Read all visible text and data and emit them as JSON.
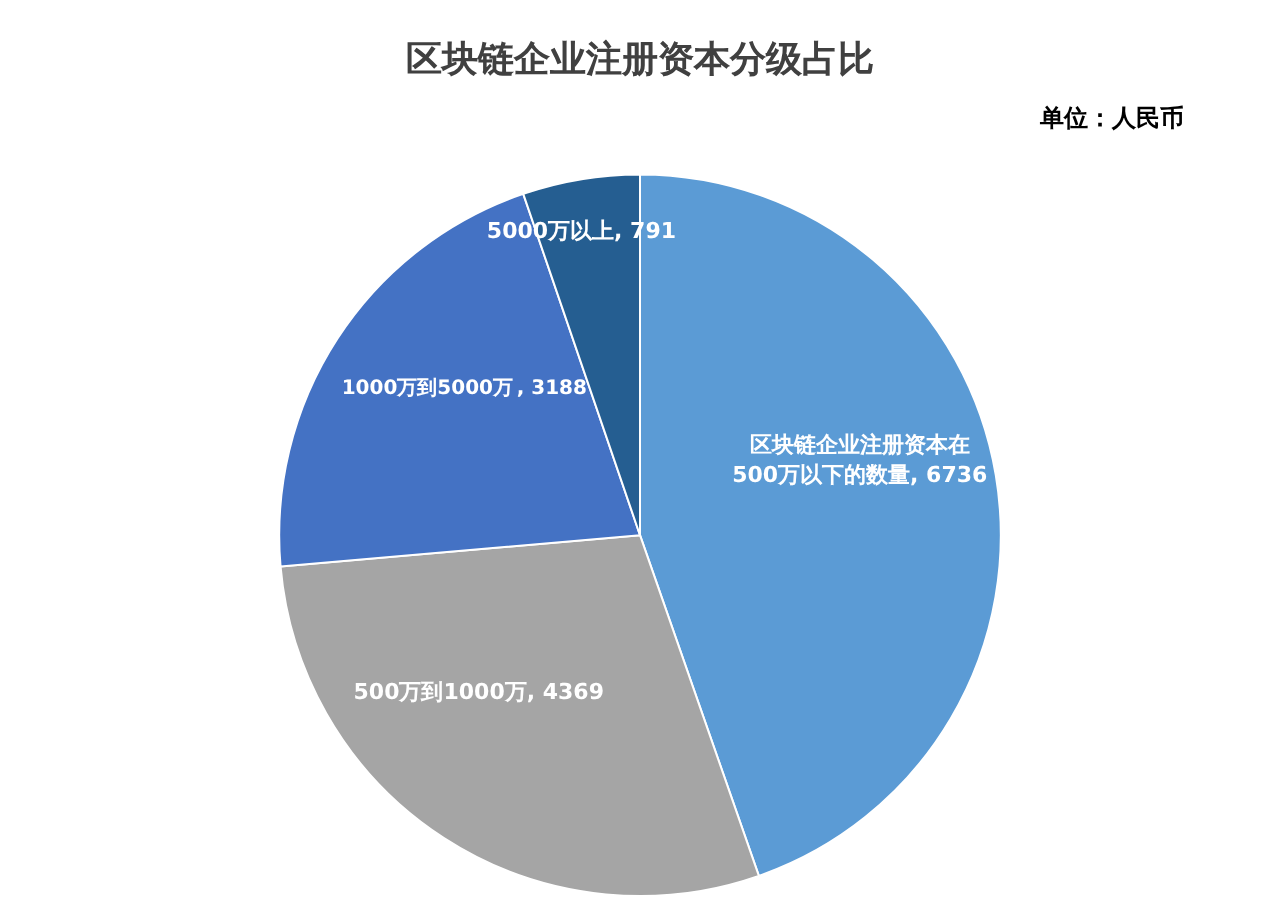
{
  "chart_data": {
    "type": "pie",
    "title": "区块链企业注册资本分级占比",
    "annotations": [
      "单位：人民币"
    ],
    "categories": [
      "区块链企业注册资本在500万以下的数量",
      "500万到1000万",
      "1000万到5000万",
      "5000万以上"
    ],
    "values": [
      6736,
      4369,
      3188,
      791
    ],
    "colors": [
      "#5b9bd5",
      "#a5a5a5",
      "#4472c4",
      "#255e91"
    ],
    "value_labels": [
      ", 6736",
      ", 4369",
      ", 3188",
      ", 791"
    ],
    "legend": false
  }
}
